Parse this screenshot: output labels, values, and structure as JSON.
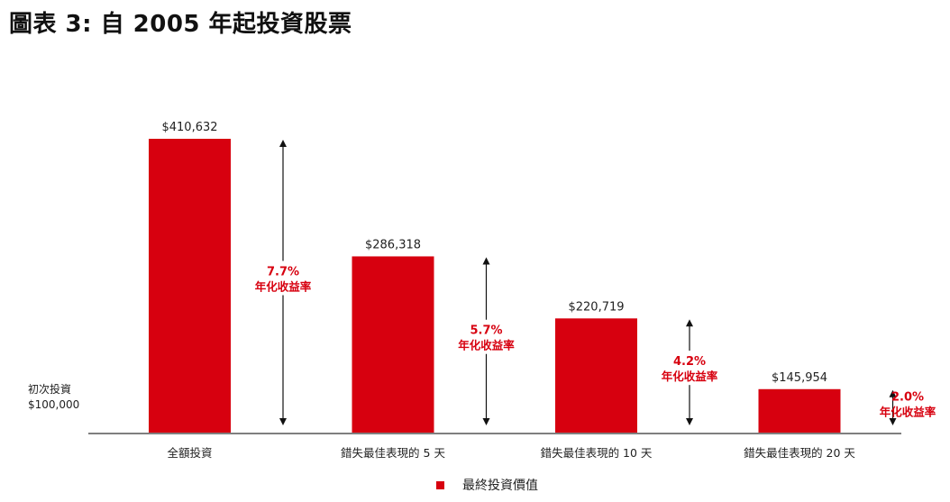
{
  "title": "圖表 3: 自 2005 年起投資股票",
  "initial_investment": {
    "label": "初次投資",
    "value": "$100,000"
  },
  "legend": {
    "label": "最終投資價值"
  },
  "colors": {
    "bar": "#d7000f",
    "annotation": "#d7000f",
    "axis": "#555555",
    "text": "#222222"
  },
  "chart_data": {
    "type": "bar",
    "categories": [
      "全額投資",
      "錯失最佳表現的 5 天",
      "錯失最佳表現的 10 天",
      "錯失最佳表現的 20 天"
    ],
    "values": [
      410632,
      286318,
      220719,
      145954
    ],
    "value_labels": [
      "$410,632",
      "$286,318",
      "$220,719",
      "$145,954"
    ],
    "series": [
      {
        "name": "最終投資價值",
        "values": [
          410632,
          286318,
          220719,
          145954
        ]
      }
    ],
    "annualized_returns": [
      {
        "rate": "7.7%",
        "label": "年化收益率"
      },
      {
        "rate": "5.7%",
        "label": "年化收益率"
      },
      {
        "rate": "4.2%",
        "label": "年化收益率"
      },
      {
        "rate": "2.0%",
        "label": "年化收益率"
      }
    ],
    "baseline_value": 100000,
    "ylim": [
      100000,
      410632
    ],
    "grid": false,
    "legend_position": "bottom-center"
  }
}
